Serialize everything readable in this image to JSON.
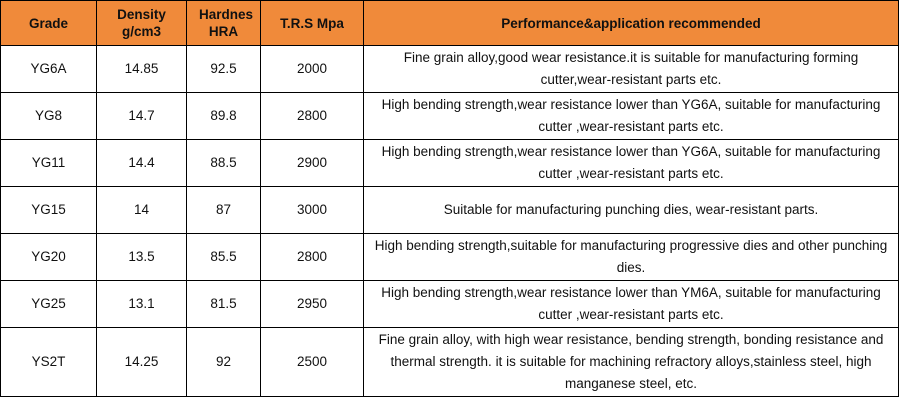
{
  "table": {
    "header": {
      "grade": "Grade",
      "density": "Density g/cm3",
      "hardness": "Hardnes HRA",
      "trs": "T.R.S Mpa",
      "performance": "Performance&application recommended"
    },
    "rows": [
      {
        "grade": "YG6A",
        "density": "14.85",
        "hardness": "92.5",
        "trs": "2000",
        "desc": "Fine grain alloy,good wear resistance.it is suitable for manufacturing forming cutter,wear-resistant parts etc."
      },
      {
        "grade": "YG8",
        "density": "14.7",
        "hardness": "89.8",
        "trs": "2800",
        "desc": "High bending strength,wear resistance lower than YG6A, suitable for manufacturing cutter ,wear-resistant parts etc."
      },
      {
        "grade": "YG11",
        "density": "14.4",
        "hardness": "88.5",
        "trs": "2900",
        "desc": "High bending strength,wear resistance lower than YG6A, suitable for manufacturing cutter ,wear-resistant parts etc."
      },
      {
        "grade": "YG15",
        "density": "14",
        "hardness": "87",
        "trs": "3000",
        "desc": "Suitable for manufacturing punching dies, wear-resistant parts."
      },
      {
        "grade": "YG20",
        "density": "13.5",
        "hardness": "85.5",
        "trs": "2800",
        "desc": "High bending strength,suitable for manufacturing progressive dies and other punching dies."
      },
      {
        "grade": "YG25",
        "density": "13.1",
        "hardness": "81.5",
        "trs": "2950",
        "desc": "High bending strength,wear resistance lower than YM6A, suitable for manufacturing cutter ,wear-resistant parts etc."
      },
      {
        "grade": "YS2T",
        "density": "14.25",
        "hardness": "92",
        "trs": "2500",
        "desc": "Fine grain alloy, with high wear resistance, bending strength, bonding resistance and thermal strength. it is suitable for machining refractory alloys,stainless steel, high manganese steel, etc."
      }
    ]
  },
  "colors": {
    "header_background": "#f08a3a",
    "border": "#000000"
  }
}
